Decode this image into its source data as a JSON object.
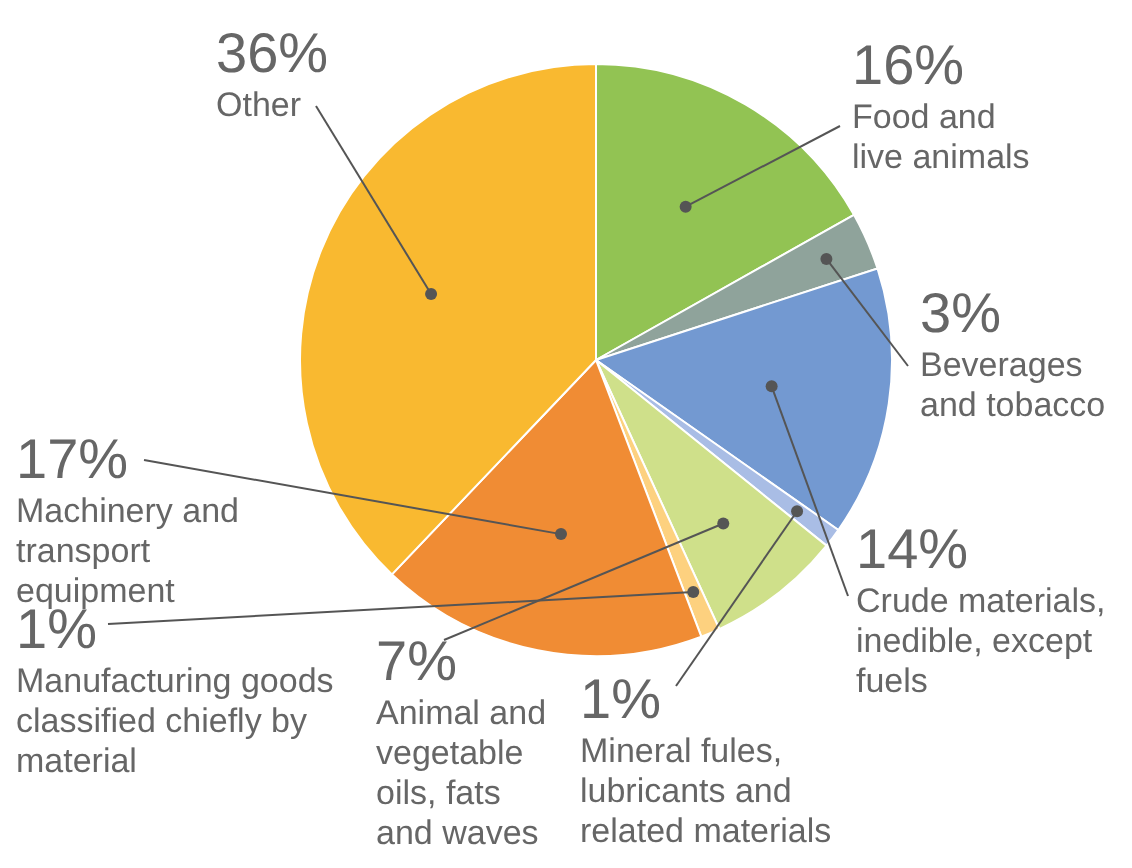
{
  "chart_data": {
    "type": "pie",
    "categories": [
      "Food and live animals",
      "Beverages and tobacco",
      "Crude materials, inedible, except fuels",
      "Mineral fules, lubricants and related materials",
      "Animal and vegetable oils, fats and waves",
      "Manufacturing goods classified chiefly by material",
      "Machinery and transport equipment",
      "Other"
    ],
    "values": [
      16,
      3,
      14,
      1,
      7,
      1,
      17,
      36
    ],
    "value_labels": [
      "16%",
      "3%",
      "14%",
      "1%",
      "7%",
      "1%",
      "17%",
      "36%"
    ],
    "colors": [
      "#92c353",
      "#8fa39b",
      "#7399d1",
      "#a9bde5",
      "#cfe08a",
      "#fdd17f",
      "#f08c34",
      "#f9b930"
    ]
  }
}
